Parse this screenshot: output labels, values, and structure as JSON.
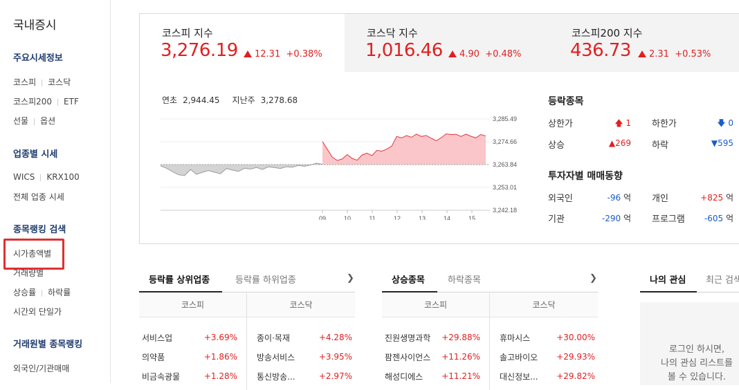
{
  "sidebar": {
    "title": "국내증시",
    "sections": [
      {
        "title": "주요시세정보",
        "rows": [
          [
            "코스피",
            "코스닥"
          ],
          [
            "코스피200",
            "ETF"
          ],
          [
            "선물",
            "옵션"
          ]
        ]
      },
      {
        "title": "업종별 시세",
        "rows": [
          [
            "WICS",
            "KRX100"
          ],
          [
            "전체 업종 시세"
          ]
        ]
      },
      {
        "title": "종목랭킹 검색",
        "rows": [
          [
            "시가총액별"
          ],
          [
            "거래량별"
          ],
          [
            "상승률",
            "하락률"
          ],
          [
            "시간외 단일가"
          ]
        ]
      },
      {
        "title": "거래원별 종목랭킹",
        "rows": [
          [
            "외국인/기관매매"
          ]
        ]
      }
    ]
  },
  "indices": [
    {
      "name": "코스피 지수",
      "value": "3,276.19",
      "change": "12.31",
      "pct": "+0.38%"
    },
    {
      "name": "코스닥 지수",
      "value": "1,016.46",
      "change": "4.90",
      "pct": "+0.48%"
    },
    {
      "name": "코스피200 지수",
      "value": "436.73",
      "change": "2.31",
      "pct": "+0.53%"
    }
  ],
  "reference": {
    "ytd_label": "연초",
    "ytd_value": "2,944.45",
    "prev_week_label": "지난주",
    "prev_week_value": "3,278.68"
  },
  "chart_data": {
    "type": "area",
    "title": "",
    "ylim": [
      3242.18,
      3285.49
    ],
    "y_ticks": [
      "3,285.49",
      "3,274.66",
      "3,263.84",
      "3,253.01",
      "3,242.18"
    ],
    "x_ticks": [
      "09",
      "10",
      "11",
      "12",
      "13",
      "14",
      "15"
    ],
    "baseline": 3263.84,
    "series": [
      {
        "values": [
          3263.2,
          3262.1,
          3260.5,
          3259.0,
          3258.6,
          3261.5,
          3259.2,
          3260.2,
          3261.0,
          3260.2,
          3259.5,
          3262.0,
          3261.2,
          3260.6,
          3262.1,
          3261.7,
          3262.5,
          3261.5,
          3262.8,
          3262.4,
          3262.0,
          3262.8,
          3262.6,
          3263.4,
          3263.0,
          3263.6,
          3264.5,
          3264.0,
          3274.8,
          3271.0,
          3267.3,
          3265.8,
          3266.5,
          3268.6,
          3266.8,
          3265.9,
          3268.4,
          3269.2,
          3268.1,
          3270.6,
          3270.2,
          3271.2,
          3272.6,
          3277.2,
          3276.5,
          3277.6,
          3276.8,
          3278.3,
          3277.2,
          3277.6,
          3276.3,
          3275.2,
          3276.6,
          3278.4,
          3278.1,
          3278.2,
          3277.2,
          3278.3,
          3277.3,
          3276.5,
          3278.1,
          3277.4
        ]
      }
    ]
  },
  "updown": {
    "title": "등락종목",
    "items": [
      {
        "label": "상한가",
        "value": "1",
        "dir": "up-arrow"
      },
      {
        "label": "하한가",
        "value": "0",
        "dir": "down-arrow"
      },
      {
        "label": "상승",
        "value": "269",
        "dir": "up-triangle"
      },
      {
        "label": "하락",
        "value": "595",
        "dir": "down-triangle"
      }
    ]
  },
  "investors": {
    "title": "투자자별 매매동향",
    "unit": "억",
    "items": [
      {
        "label": "외국인",
        "value": "-96"
      },
      {
        "label": "개인",
        "value": "+825"
      },
      {
        "label": "기관",
        "value": "-290"
      },
      {
        "label": "프로그램",
        "value": "-605"
      }
    ]
  },
  "sector_panel": {
    "tabs": [
      "등락률 상위업종",
      "등락률 하위업종"
    ],
    "cols": [
      "코스피",
      "코스닥"
    ],
    "left": [
      [
        "서비스업",
        "+3.69%"
      ],
      [
        "의약품",
        "+1.86%"
      ],
      [
        "비금속광물",
        "+1.28%"
      ]
    ],
    "right": [
      [
        "종이·목재",
        "+4.28%"
      ],
      [
        "방송서비스",
        "+3.95%"
      ],
      [
        "통신방송...",
        "+2.97%"
      ]
    ]
  },
  "stock_panel": {
    "tabs": [
      "상승종목",
      "하락종목"
    ],
    "cols": [
      "코스피",
      "코스닥"
    ],
    "left": [
      [
        "진원생명과학",
        "+29.88%"
      ],
      [
        "팜젠사이언스",
        "+11.26%"
      ],
      [
        "해성디에스",
        "+11.21%"
      ]
    ],
    "right": [
      [
        "휴마시스",
        "+30.00%"
      ],
      [
        "솔고바이오",
        "+29.93%"
      ],
      [
        "대신정보...",
        "+29.82%"
      ]
    ]
  },
  "interest_panel": {
    "tabs": [
      "나의 관심",
      "최근 검색"
    ],
    "login_text": "로그인 하시면,\n나의 관심 리스트를\n볼 수 있습니다."
  }
}
